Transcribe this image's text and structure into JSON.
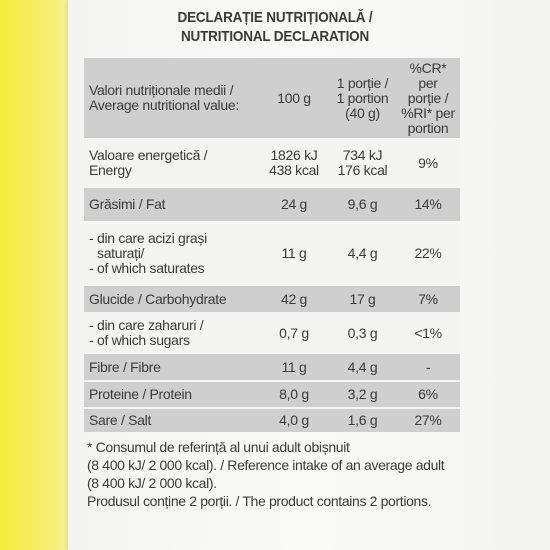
{
  "heading": {
    "line1": "DECLARAȚIE NUTRIȚIONALĂ /",
    "line2": "NUTRITIONAL DECLARATION"
  },
  "header_row": {
    "label": [
      "Valori nutriționale medii /",
      "Average nutritional value:"
    ],
    "per100": "100 g",
    "portion": [
      "1 porție /",
      "1 portion",
      "(40 g)"
    ],
    "cr": [
      "%CR* per",
      "porție /",
      "%RI* per",
      "portion"
    ]
  },
  "rows": [
    {
      "label": [
        "Valoare energetică /",
        "Energy"
      ],
      "per100": [
        "1826 kJ",
        "438 kcal"
      ],
      "portion": [
        "734 kJ",
        "176 kcal"
      ],
      "cr": "9%"
    },
    {
      "label": [
        "Grăsimi / Fat"
      ],
      "per100": [
        "24 g"
      ],
      "portion": [
        "9,6 g"
      ],
      "cr": "14%"
    },
    {
      "label": [
        "- din care acizi grași",
        "saturați/",
        "- of which saturates"
      ],
      "per100": [
        "11 g"
      ],
      "portion": [
        "4,4 g"
      ],
      "cr": "22%"
    },
    {
      "label": [
        "Glucide / Carbohydrate"
      ],
      "per100": [
        "42 g"
      ],
      "portion": [
        "17 g"
      ],
      "cr": "7%"
    },
    {
      "label": [
        "- din care zaharuri /",
        "- of which sugars"
      ],
      "per100": [
        "0,7 g"
      ],
      "portion": [
        "0,3 g"
      ],
      "cr": "<1%"
    },
    {
      "label": [
        "Fibre / Fibre"
      ],
      "per100": [
        "11 g"
      ],
      "portion": [
        "4,4 g"
      ],
      "cr": "-"
    },
    {
      "label": [
        "Proteine / Protein"
      ],
      "per100": [
        "8,0 g"
      ],
      "portion": [
        "3,2 g"
      ],
      "cr": "6%"
    },
    {
      "label": [
        "Sare / Salt"
      ],
      "per100": [
        "4,0 g"
      ],
      "portion": [
        "1,6 g"
      ],
      "cr": "27%"
    }
  ],
  "footnote": [
    "* Consumul de referință al unui adult obișnuit",
    "(8 400 kJ/ 2 000 kcal). / Reference intake of an average adult",
    "(8 400 kJ/ 2 000 kcal).",
    "Produsul conține 2 porții. / The product contains 2 portions."
  ]
}
